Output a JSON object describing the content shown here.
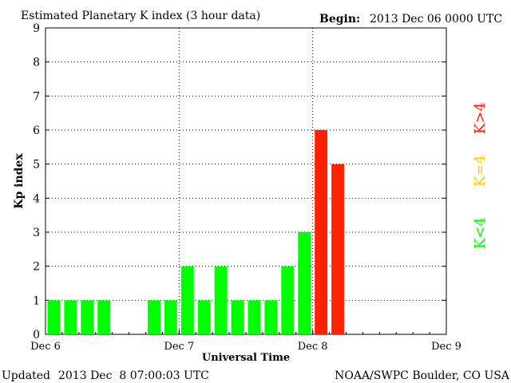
{
  "header": {
    "title": "Estimated Planetary K index (3 hour data)",
    "begin_label": "Begin:",
    "begin_value": "2013 Dec 06 0000 UTC"
  },
  "footer": {
    "updated_label": "Updated",
    "updated_value": "2013 Dec  8 07:00:03 UTC",
    "source": "NOAA/SWPC Boulder, CO USA"
  },
  "legend": {
    "items": [
      {
        "label": "K<4",
        "color": "#00ff00"
      },
      {
        "label": "K=4",
        "color": "#ffcc00"
      },
      {
        "label": "K>4",
        "color": "#ff2200"
      }
    ]
  },
  "chart_data": {
    "type": "bar",
    "title": "Estimated Planetary K index (3 hour data)",
    "xlabel": "Universal Time",
    "ylabel": "Kp index",
    "ylim": [
      0,
      9
    ],
    "yticks": [
      0,
      1,
      2,
      3,
      4,
      5,
      6,
      7,
      8,
      9
    ],
    "xlim": [
      "2013-12-06 00:00",
      "2013-12-09 00:00"
    ],
    "interval_hours": 3,
    "xticks": [
      "Dec 6",
      "Dec 7",
      "Dec 8",
      "Dec 9"
    ],
    "grid": true,
    "bars": [
      {
        "start": "2013-12-06 00:00",
        "value": 1,
        "color": "#00ff00"
      },
      {
        "start": "2013-12-06 03:00",
        "value": 1,
        "color": "#00ff00"
      },
      {
        "start": "2013-12-06 06:00",
        "value": 1,
        "color": "#00ff00"
      },
      {
        "start": "2013-12-06 09:00",
        "value": 1,
        "color": "#00ff00"
      },
      {
        "start": "2013-12-06 18:00",
        "value": 1,
        "color": "#00ff00"
      },
      {
        "start": "2013-12-06 21:00",
        "value": 1,
        "color": "#00ff00"
      },
      {
        "start": "2013-12-07 00:00",
        "value": 2,
        "color": "#00ff00"
      },
      {
        "start": "2013-12-07 03:00",
        "value": 1,
        "color": "#00ff00"
      },
      {
        "start": "2013-12-07 06:00",
        "value": 2,
        "color": "#00ff00"
      },
      {
        "start": "2013-12-07 09:00",
        "value": 1,
        "color": "#00ff00"
      },
      {
        "start": "2013-12-07 12:00",
        "value": 1,
        "color": "#00ff00"
      },
      {
        "start": "2013-12-07 15:00",
        "value": 1,
        "color": "#00ff00"
      },
      {
        "start": "2013-12-07 18:00",
        "value": 2,
        "color": "#00ff00"
      },
      {
        "start": "2013-12-07 21:00",
        "value": 3,
        "color": "#00ff00"
      },
      {
        "start": "2013-12-08 00:00",
        "value": 6,
        "color": "#ff2200"
      },
      {
        "start": "2013-12-08 03:00",
        "value": 5,
        "color": "#ff2200"
      }
    ]
  }
}
